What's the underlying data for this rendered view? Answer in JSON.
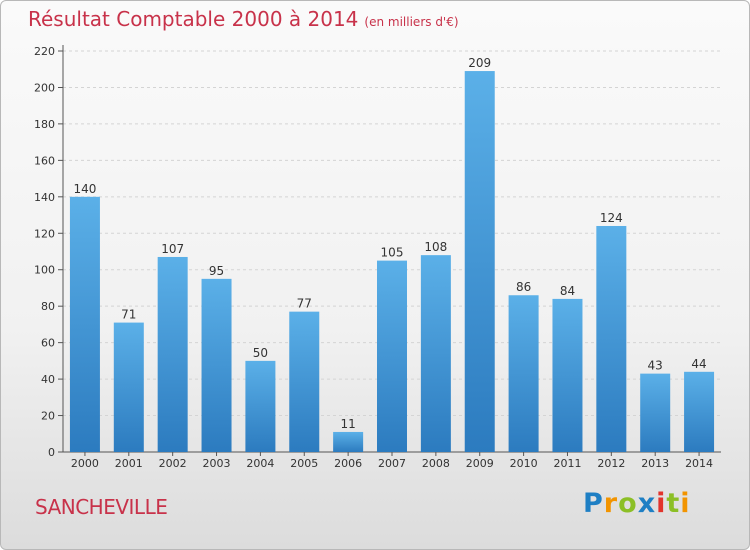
{
  "chart_data": {
    "type": "bar",
    "title": "Résultat Comptable 2000 à 2014",
    "subtitle": "(en milliers d'€)",
    "categories": [
      "2000",
      "2001",
      "2002",
      "2003",
      "2004",
      "2005",
      "2006",
      "2007",
      "2008",
      "2009",
      "2010",
      "2011",
      "2012",
      "2013",
      "2014"
    ],
    "values": [
      140,
      71,
      107,
      95,
      50,
      77,
      11,
      105,
      108,
      209,
      86,
      84,
      124,
      43,
      44
    ],
    "ylim": [
      0,
      220
    ],
    "yticks": [
      0,
      20,
      40,
      60,
      80,
      100,
      120,
      140,
      160,
      180,
      200,
      220
    ],
    "grid": true,
    "xlabel": "",
    "ylabel": ""
  },
  "footer": {
    "commune": "SANCHEVILLE",
    "logo_letters": [
      "P",
      "r",
      "o",
      "x",
      "i",
      "t",
      "i"
    ],
    "logo_colors": [
      "#1e7fc4",
      "#f29400",
      "#8cbf26",
      "#1e7fc4",
      "#e2342c",
      "#8cbf26",
      "#f29400"
    ]
  },
  "colors": {
    "bar_top": "#5bb0e8",
    "bar_bottom": "#2c7bbf",
    "title": "#c8324a"
  }
}
